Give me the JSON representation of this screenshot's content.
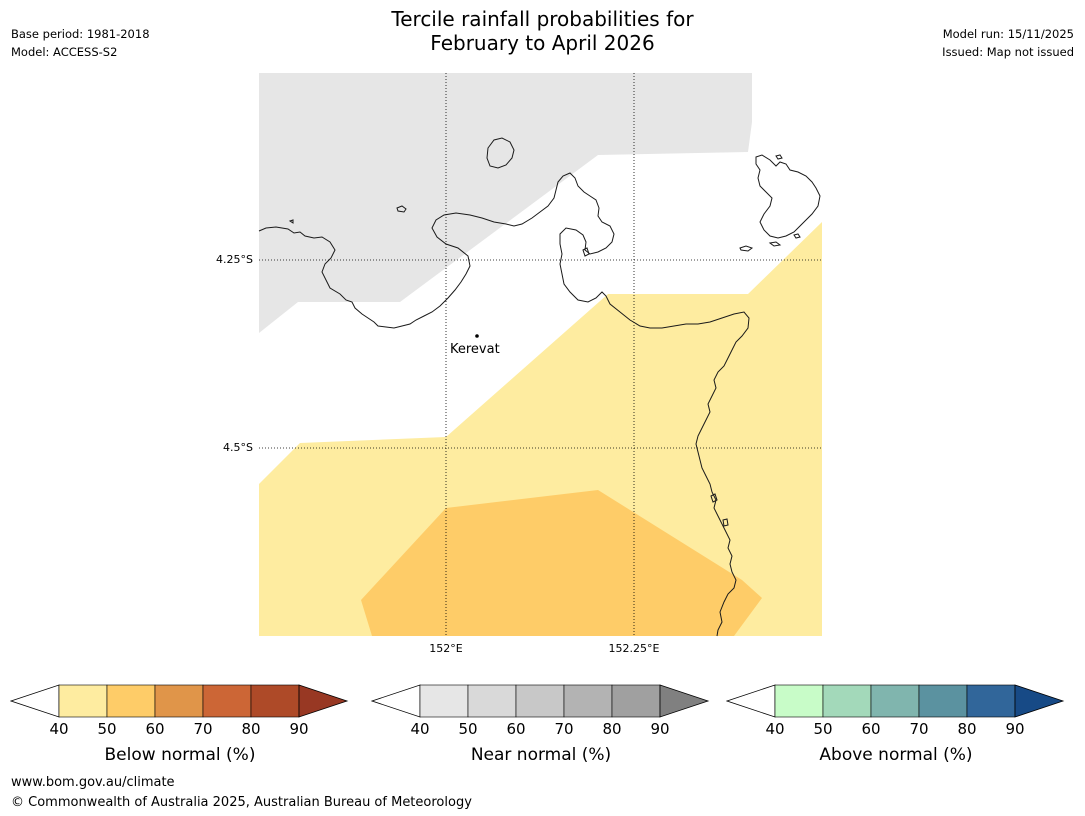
{
  "title_line1": "Tercile rainfall probabilities for",
  "title_line2": "February to April 2026",
  "meta_left": {
    "base_period": "Base period: 1981-2018",
    "model": "Model: ACCESS-S2"
  },
  "meta_right": {
    "model_run": "Model run: 15/11/2025",
    "issued": "Issued: Map not issued"
  },
  "map": {
    "lat_labels": [
      "4.25°S",
      "4.5°S"
    ],
    "lon_labels": [
      "152°E",
      "152.25°E"
    ],
    "place": "Kerevat",
    "colors": {
      "near_normal_40_50": "#e6e6e6",
      "below_40_50": "#feeca0",
      "below_50_60": "#fecc68",
      "coast": "#1a1a1a"
    }
  },
  "colorbars": [
    {
      "name": "below",
      "label": "Below normal (%)",
      "ticks": [
        "40",
        "50",
        "60",
        "70",
        "80",
        "90"
      ],
      "under_color": "#ffffff",
      "colors": [
        "#feeca0",
        "#fecc68",
        "#e09549",
        "#cc6636",
        "#ae4a28"
      ],
      "over_color": "#983823"
    },
    {
      "name": "near",
      "label": "Near normal (%)",
      "ticks": [
        "40",
        "50",
        "60",
        "70",
        "80",
        "90"
      ],
      "under_color": "#ffffff",
      "colors": [
        "#e6e6e6",
        "#d9d9d9",
        "#c8c8c8",
        "#b3b3b3",
        "#a0a0a0"
      ],
      "over_color": "#808080"
    },
    {
      "name": "above",
      "label": "Above normal (%)",
      "ticks": [
        "40",
        "50",
        "60",
        "70",
        "80",
        "90"
      ],
      "under_color": "#ffffff",
      "colors": [
        "#c8fcc8",
        "#a3d9ba",
        "#80b5ae",
        "#5b92a0",
        "#31669a"
      ],
      "over_color": "#174a86"
    }
  ],
  "footer": {
    "url": "www.bom.gov.au/climate",
    "copyright": "© Commonwealth of Australia 2025, Australian Bureau of Meteorology"
  }
}
